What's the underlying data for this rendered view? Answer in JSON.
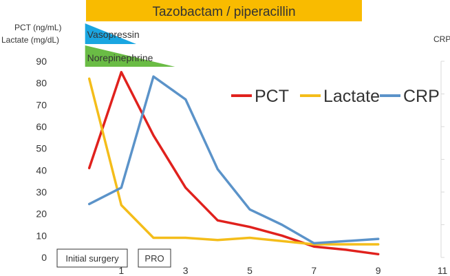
{
  "chart_data": {
    "type": "line",
    "x_ticks": [
      1,
      3,
      5,
      7,
      9,
      11
    ],
    "left_axis": {
      "label_line1": "PCT (ng/mL)",
      "label_line2": "Lactate (mg/dL)",
      "ylim": [
        0,
        90
      ],
      "ticks": [
        0,
        10,
        20,
        30,
        40,
        50,
        60,
        70,
        80,
        90
      ]
    },
    "right_axis": {
      "label": "CRP"
    },
    "xlim": [
      -1,
      11
    ],
    "series": [
      {
        "name": "PCT",
        "color": "#e0211d",
        "x": [
          0,
          1,
          2,
          3,
          4,
          5,
          6,
          7,
          8,
          9
        ],
        "values": [
          41,
          85,
          56,
          32,
          17,
          14,
          10,
          5,
          3.5,
          1.5
        ]
      },
      {
        "name": "Lactate",
        "color": "#f4bd1a",
        "x": [
          0,
          1,
          2,
          3,
          4,
          5,
          6,
          7,
          8,
          9
        ],
        "values": [
          82,
          24,
          9,
          9,
          8,
          9,
          7.5,
          6,
          6,
          6
        ]
      },
      {
        "name": "CRP",
        "color": "#5b93c9",
        "x": [
          0,
          1,
          2,
          3,
          4,
          5,
          6,
          7,
          8,
          9
        ],
        "values": [
          24.5,
          32,
          83,
          72.5,
          40.5,
          22,
          15,
          6.5,
          7.5,
          8.5
        ]
      }
    ],
    "legend_position": "top-right",
    "grid": false
  },
  "therapy_bars": {
    "antibiotic": {
      "label": "Tazobactam / piperacillin",
      "color": "#f9bb00",
      "x_start": -1,
      "x_end": 8
    },
    "vasopressin": {
      "label": "Vasopressin",
      "color": "#1aa6e1",
      "x_start": 0,
      "x_end": 1.25
    },
    "norepinephrine": {
      "label": "Norepinephrine",
      "color": "#6abc45",
      "x_start": 0,
      "x_end": 2.5
    }
  },
  "events": {
    "initial_surgery": "Initial surgery",
    "pro": "PRO"
  }
}
